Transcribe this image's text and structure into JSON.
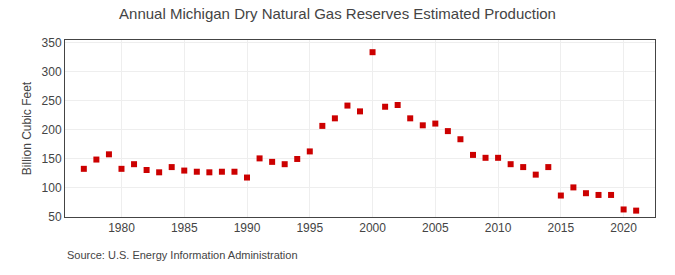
{
  "chart_data": {
    "type": "scatter",
    "title": "Annual Michigan Dry Natural Gas Reserves Estimated Production",
    "ylabel": "Billion Cubic Feet",
    "annotations": [
      "Source: U.S. Energy Information Administration"
    ],
    "x": [
      1977,
      1978,
      1979,
      1980,
      1981,
      1982,
      1983,
      1984,
      1985,
      1986,
      1987,
      1988,
      1989,
      1990,
      1991,
      1992,
      1993,
      1994,
      1995,
      1996,
      1997,
      1998,
      1999,
      2000,
      2001,
      2002,
      2003,
      2004,
      2005,
      2006,
      2007,
      2008,
      2009,
      2010,
      2011,
      2012,
      2013,
      2014,
      2015,
      2016,
      2017,
      2018,
      2019,
      2020,
      2021
    ],
    "values": [
      133,
      149,
      158,
      133,
      141,
      131,
      127,
      136,
      130,
      128,
      127,
      128,
      128,
      118,
      151,
      145,
      141,
      150,
      163,
      207,
      220,
      242,
      232,
      334,
      240,
      243,
      220,
      208,
      211,
      198,
      184,
      157,
      152,
      152,
      141,
      136,
      123,
      136,
      87,
      101,
      91,
      88,
      88,
      63,
      61
    ],
    "color": "#cc0000",
    "marker": "square",
    "xlim": [
      1975.5,
      2022.5
    ],
    "xticks": [
      1980,
      1985,
      1990,
      1995,
      2000,
      2005,
      2010,
      2015,
      2020
    ],
    "ylim": [
      50,
      355
    ],
    "yticks": [
      50,
      100,
      150,
      200,
      250,
      300,
      350
    ],
    "grid": true
  }
}
